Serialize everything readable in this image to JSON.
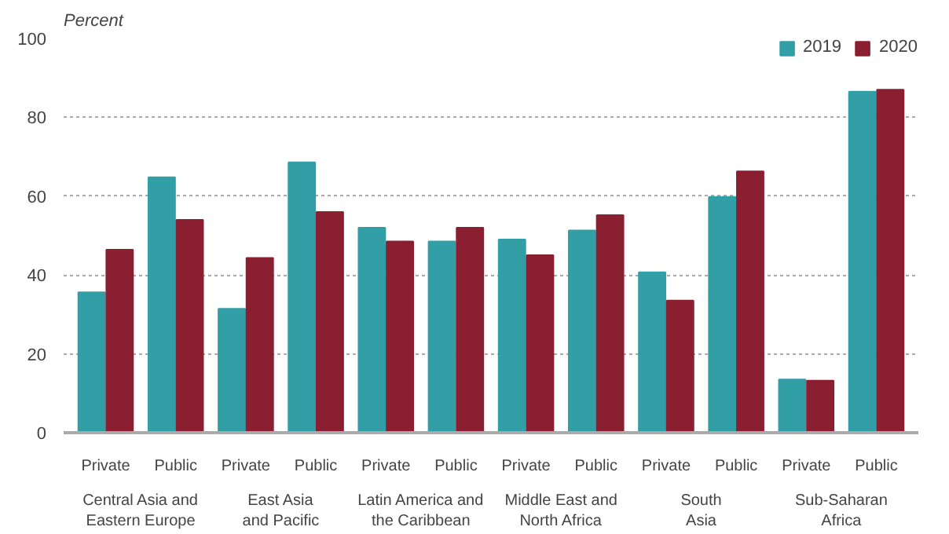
{
  "chart_data": {
    "type": "bar",
    "ylabel": "Percent",
    "categories": [
      "Private",
      "Public",
      "Private",
      "Public",
      "Private",
      "Public",
      "Private",
      "Public",
      "Private",
      "Public",
      "Private",
      "Public"
    ],
    "annotations": [
      "Central Asia and\nEastern Europe",
      "East Asia\nand Pacific",
      "Latin America and\nthe Caribbean",
      "Middle East and\nNorth Africa",
      "South\nAsia",
      "Sub-Saharan\nAfrica"
    ],
    "series": [
      {
        "name": "2019",
        "color": "#329ea6",
        "values": [
          35.6,
          64.8,
          31.4,
          68.6,
          52,
          48.5,
          49,
          51.3,
          40.7,
          59.8,
          13.5,
          86.5
        ]
      },
      {
        "name": "2020",
        "color": "#8a1f32",
        "values": [
          46.4,
          54,
          44.3,
          56,
          48.5,
          52,
          45,
          55.2,
          33.5,
          66.3,
          13.2,
          87
        ]
      }
    ],
    "ylim": [
      0,
      100
    ],
    "yticks": [
      0,
      20,
      40,
      60,
      80,
      100
    ],
    "grid": "y",
    "legend": "top right"
  }
}
